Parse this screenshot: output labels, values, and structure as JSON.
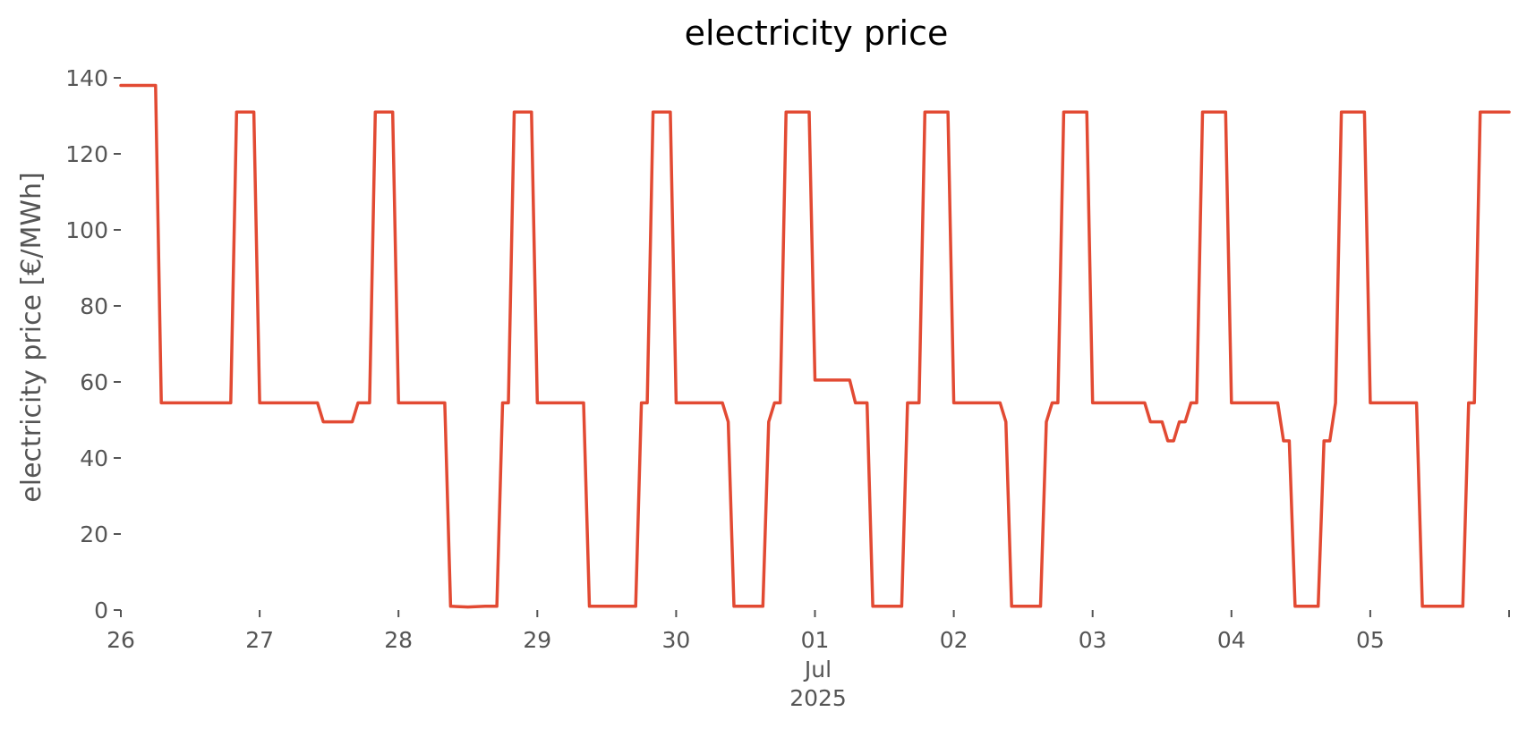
{
  "chart_data": {
    "type": "line",
    "title": "electricity price",
    "xlabel": "",
    "ylabel": "electricity price [€/MWh]",
    "ylim": [
      0,
      140
    ],
    "y_ticks": [
      0,
      20,
      40,
      60,
      80,
      100,
      120,
      140
    ],
    "x_range": [
      "2025-06-26T00:00",
      "2025-07-06T00:00"
    ],
    "x_ticks": [
      {
        "date": "2025-06-26",
        "label": "26"
      },
      {
        "date": "2025-06-27",
        "label": "27"
      },
      {
        "date": "2025-06-28",
        "label": "28"
      },
      {
        "date": "2025-06-29",
        "label": "29"
      },
      {
        "date": "2025-06-30",
        "label": "30"
      },
      {
        "date": "2025-07-01",
        "label": "01"
      },
      {
        "date": "2025-07-02",
        "label": "02"
      },
      {
        "date": "2025-07-03",
        "label": "03"
      },
      {
        "date": "2025-07-04",
        "label": "04"
      },
      {
        "date": "2025-07-05",
        "label": "05"
      },
      {
        "date": "2025-07-06",
        "label": ""
      }
    ],
    "x_sublabel_month": "Jul",
    "x_sublabel_year": "2025",
    "grid": false,
    "series": [
      {
        "color": "#E24A33",
        "points": [
          [
            "2025-06-26T00:00",
            138
          ],
          [
            "2025-06-26T06:00",
            138
          ],
          [
            "2025-06-26T07:00",
            54.5
          ],
          [
            "2025-06-26T19:00",
            54.5
          ],
          [
            "2025-06-26T20:00",
            131
          ],
          [
            "2025-06-26T23:00",
            131
          ],
          [
            "2025-06-27T00:00",
            54.5
          ],
          [
            "2025-06-27T10:00",
            54.5
          ],
          [
            "2025-06-27T11:00",
            49.5
          ],
          [
            "2025-06-27T16:00",
            49.5
          ],
          [
            "2025-06-27T17:00",
            54.5
          ],
          [
            "2025-06-27T19:00",
            54.5
          ],
          [
            "2025-06-27T20:00",
            131
          ],
          [
            "2025-06-27T23:00",
            131
          ],
          [
            "2025-06-28T00:00",
            54.5
          ],
          [
            "2025-06-28T08:00",
            54.5
          ],
          [
            "2025-06-28T09:00",
            1
          ],
          [
            "2025-06-28T12:00",
            0.8
          ],
          [
            "2025-06-28T15:00",
            1
          ],
          [
            "2025-06-28T17:00",
            1
          ],
          [
            "2025-06-28T18:00",
            54.5
          ],
          [
            "2025-06-28T19:00",
            54.5
          ],
          [
            "2025-06-28T20:00",
            131
          ],
          [
            "2025-06-28T23:00",
            131
          ],
          [
            "2025-06-29T00:00",
            54.5
          ],
          [
            "2025-06-29T08:00",
            54.5
          ],
          [
            "2025-06-29T09:00",
            1
          ],
          [
            "2025-06-29T17:00",
            1
          ],
          [
            "2025-06-29T18:00",
            54.5
          ],
          [
            "2025-06-29T19:00",
            54.5
          ],
          [
            "2025-06-29T20:00",
            131
          ],
          [
            "2025-06-29T23:00",
            131
          ],
          [
            "2025-06-30T00:00",
            54.5
          ],
          [
            "2025-06-30T08:00",
            54.5
          ],
          [
            "2025-06-30T09:00",
            49.5
          ],
          [
            "2025-06-30T10:00",
            1
          ],
          [
            "2025-06-30T15:00",
            1
          ],
          [
            "2025-06-30T16:00",
            49.5
          ],
          [
            "2025-06-30T17:00",
            54.5
          ],
          [
            "2025-06-30T18:00",
            54.5
          ],
          [
            "2025-06-30T19:00",
            131
          ],
          [
            "2025-06-30T23:00",
            131
          ],
          [
            "2025-07-01T00:00",
            60.5
          ],
          [
            "2025-07-01T06:00",
            60.5
          ],
          [
            "2025-07-01T07:00",
            54.5
          ],
          [
            "2025-07-01T09:00",
            54.5
          ],
          [
            "2025-07-01T10:00",
            1
          ],
          [
            "2025-07-01T15:00",
            1
          ],
          [
            "2025-07-01T16:00",
            54.5
          ],
          [
            "2025-07-01T18:00",
            54.5
          ],
          [
            "2025-07-01T19:00",
            131
          ],
          [
            "2025-07-01T23:00",
            131
          ],
          [
            "2025-07-02T00:00",
            54.5
          ],
          [
            "2025-07-02T08:00",
            54.5
          ],
          [
            "2025-07-02T09:00",
            49.5
          ],
          [
            "2025-07-02T10:00",
            1
          ],
          [
            "2025-07-02T15:00",
            1
          ],
          [
            "2025-07-02T16:00",
            49.5
          ],
          [
            "2025-07-02T17:00",
            54.5
          ],
          [
            "2025-07-02T18:00",
            54.5
          ],
          [
            "2025-07-02T19:00",
            131
          ],
          [
            "2025-07-02T23:00",
            131
          ],
          [
            "2025-07-03T00:00",
            54.5
          ],
          [
            "2025-07-03T09:00",
            54.5
          ],
          [
            "2025-07-03T10:00",
            49.5
          ],
          [
            "2025-07-03T12:00",
            49.5
          ],
          [
            "2025-07-03T13:00",
            44.5
          ],
          [
            "2025-07-03T14:00",
            44.5
          ],
          [
            "2025-07-03T15:00",
            49.5
          ],
          [
            "2025-07-03T16:00",
            49.5
          ],
          [
            "2025-07-03T17:00",
            54.5
          ],
          [
            "2025-07-03T18:00",
            54.5
          ],
          [
            "2025-07-03T19:00",
            131
          ],
          [
            "2025-07-03T23:00",
            131
          ],
          [
            "2025-07-04T00:00",
            54.5
          ],
          [
            "2025-07-04T08:00",
            54.5
          ],
          [
            "2025-07-04T09:00",
            44.5
          ],
          [
            "2025-07-04T10:00",
            44.5
          ],
          [
            "2025-07-04T11:00",
            1
          ],
          [
            "2025-07-04T15:00",
            1
          ],
          [
            "2025-07-04T16:00",
            44.5
          ],
          [
            "2025-07-04T17:00",
            44.5
          ],
          [
            "2025-07-04T18:00",
            54.5
          ],
          [
            "2025-07-04T19:00",
            131
          ],
          [
            "2025-07-04T23:00",
            131
          ],
          [
            "2025-07-05T00:00",
            54.5
          ],
          [
            "2025-07-05T08:00",
            54.5
          ],
          [
            "2025-07-05T09:00",
            1
          ],
          [
            "2025-07-05T16:00",
            1
          ],
          [
            "2025-07-05T17:00",
            54.5
          ],
          [
            "2025-07-05T18:00",
            54.5
          ],
          [
            "2025-07-05T19:00",
            131
          ],
          [
            "2025-07-06T00:00",
            131
          ]
        ]
      }
    ]
  }
}
